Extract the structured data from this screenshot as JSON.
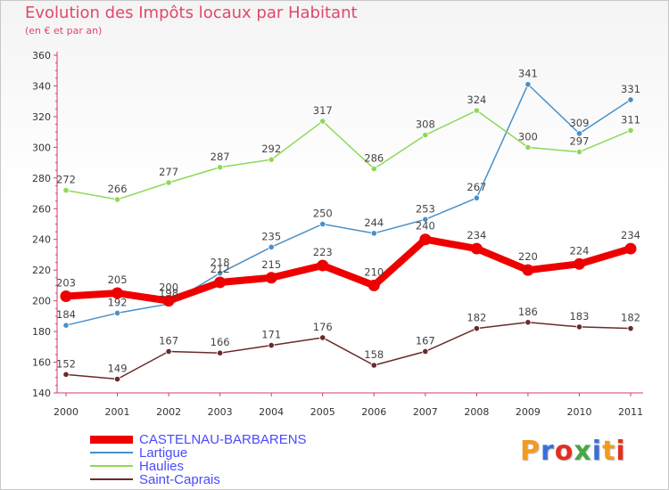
{
  "title": "Evolution des Impôts locaux par Habitant",
  "subtitle": "(en € et par an)",
  "logo": {
    "text": "Proxiti",
    "letter_colors": [
      "#f29a21",
      "#3a6fd8",
      "#e03020",
      "#45a843",
      "#3a6fd8",
      "#f29a21",
      "#e03020"
    ]
  },
  "chart_data": {
    "type": "line",
    "x": [
      "2000",
      "2001",
      "2002",
      "2003",
      "2004",
      "2005",
      "2006",
      "2007",
      "2008",
      "2009",
      "2010",
      "2011"
    ],
    "ylim": [
      140,
      360
    ],
    "yticks": [
      140,
      160,
      180,
      200,
      220,
      240,
      260,
      280,
      300,
      320,
      340,
      360
    ],
    "grid": false,
    "legend_position": "bottom-left",
    "series": [
      {
        "name": "Lartigue",
        "color": "#4a90c8",
        "width": 1.5,
        "values": [
          184,
          192,
          198,
          218,
          235,
          250,
          244,
          253,
          267,
          341,
          309,
          331
        ]
      },
      {
        "name": "Haulies",
        "color": "#8ed858",
        "width": 1.5,
        "values": [
          272,
          266,
          277,
          287,
          292,
          317,
          286,
          308,
          324,
          300,
          297,
          311
        ]
      },
      {
        "name": "Saint-Caprais",
        "color": "#6a2a2a",
        "width": 1.5,
        "values": [
          152,
          149,
          167,
          166,
          171,
          176,
          158,
          167,
          182,
          186,
          183,
          182
        ]
      },
      {
        "name": "CASTELNAU-BARBARENS",
        "color": "#ee0000",
        "width": 8,
        "values": [
          203,
          205,
          200,
          212,
          215,
          223,
          210,
          240,
          234,
          220,
          224,
          234
        ]
      }
    ],
    "legend_order": [
      "CASTELNAU-BARBARENS",
      "Lartigue",
      "Haulies",
      "Saint-Caprais"
    ]
  }
}
